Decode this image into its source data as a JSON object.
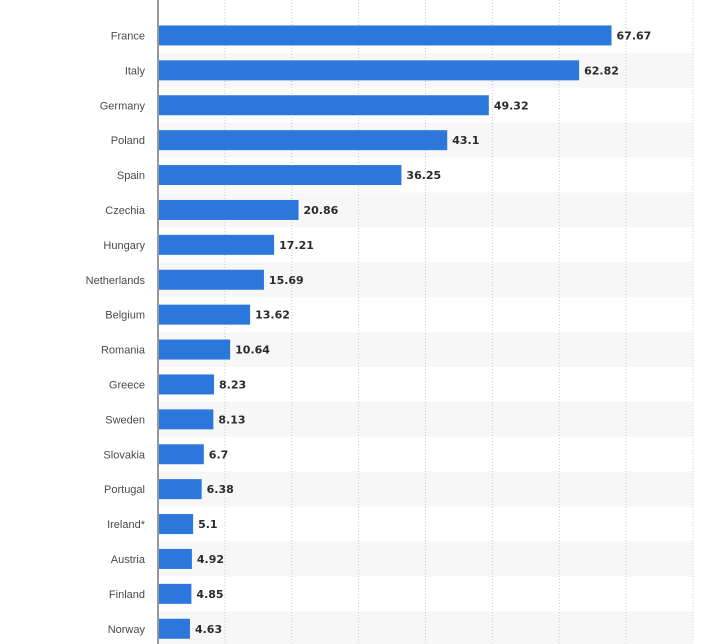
{
  "chart_data": {
    "type": "bar",
    "orientation": "horizontal",
    "categories": [
      "France",
      "Italy",
      "Germany",
      "Poland",
      "Spain",
      "Czechia",
      "Hungary",
      "Netherlands",
      "Belgium",
      "Romania",
      "Greece",
      "Sweden",
      "Slovakia",
      "Portugal",
      "Ireland*",
      "Austria",
      "Finland",
      "Norway"
    ],
    "values": [
      67.67,
      62.82,
      49.32,
      43.1,
      36.25,
      20.86,
      17.21,
      15.69,
      13.62,
      10.64,
      8.23,
      8.13,
      6.7,
      6.38,
      5.1,
      4.92,
      4.85,
      4.63
    ],
    "value_labels": [
      "67.67",
      "62.82",
      "49.32",
      "43.1",
      "36.25",
      "20.86",
      "17.21",
      "15.69",
      "13.62",
      "10.64",
      "8.23",
      "8.13",
      "6.7",
      "6.38",
      "5.1",
      "4.92",
      "4.85",
      "4.63"
    ],
    "xlim": [
      0,
      80
    ],
    "grid": true,
    "alternating_row_shading": true,
    "bar_color": "#2b77dc",
    "row_shade_color": "#f7f7f7",
    "title": "",
    "xlabel": "",
    "ylabel": ""
  }
}
